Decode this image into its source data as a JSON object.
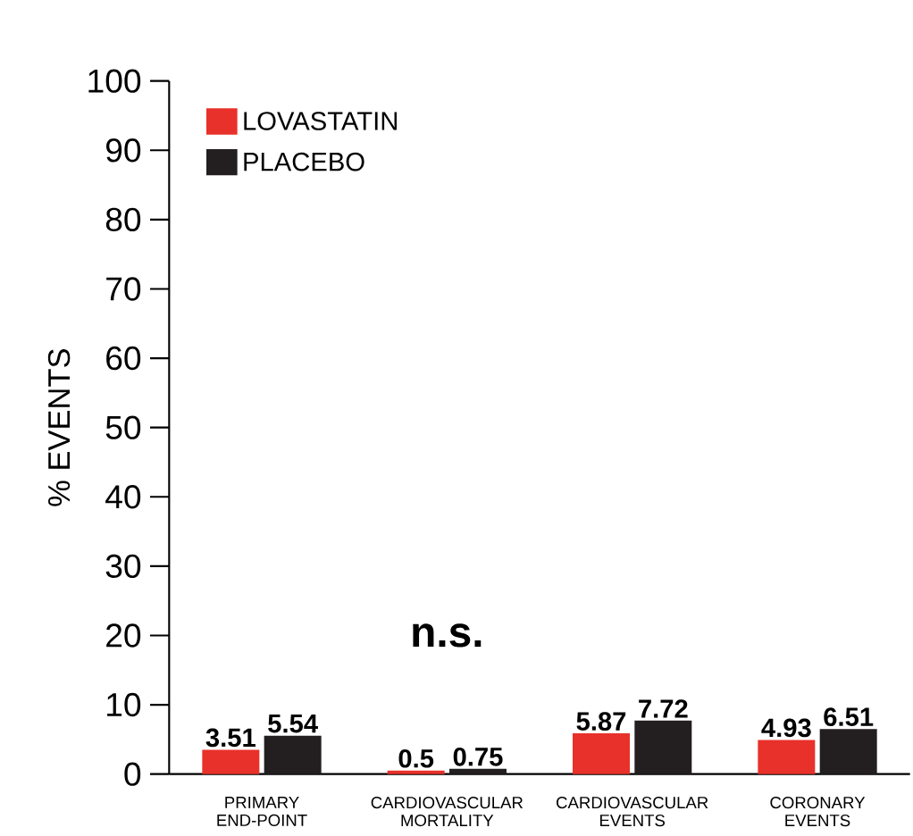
{
  "chart_data": {
    "type": "bar",
    "ylabel": "% EVENTS",
    "categories": [
      "PRIMARY END-POINT",
      "CARDIOVASCULAR MORTALITY",
      "CARDIOVASCULAR EVENTS",
      "CORONARY EVENTS"
    ],
    "series": [
      {
        "name": "LOVASTATIN",
        "color": "#e8312a",
        "values": [
          3.51,
          0.5,
          5.87,
          4.93
        ]
      },
      {
        "name": "PLACEBO",
        "color": "#231f20",
        "values": [
          5.54,
          0.75,
          7.72,
          6.51
        ]
      }
    ],
    "ylim": [
      0,
      100
    ],
    "yticks": [
      0,
      10,
      20,
      30,
      40,
      50,
      60,
      70,
      80,
      90,
      100
    ],
    "data_labels": true,
    "legend": "top left",
    "grid": false,
    "annotations": [
      "n.s."
    ]
  }
}
